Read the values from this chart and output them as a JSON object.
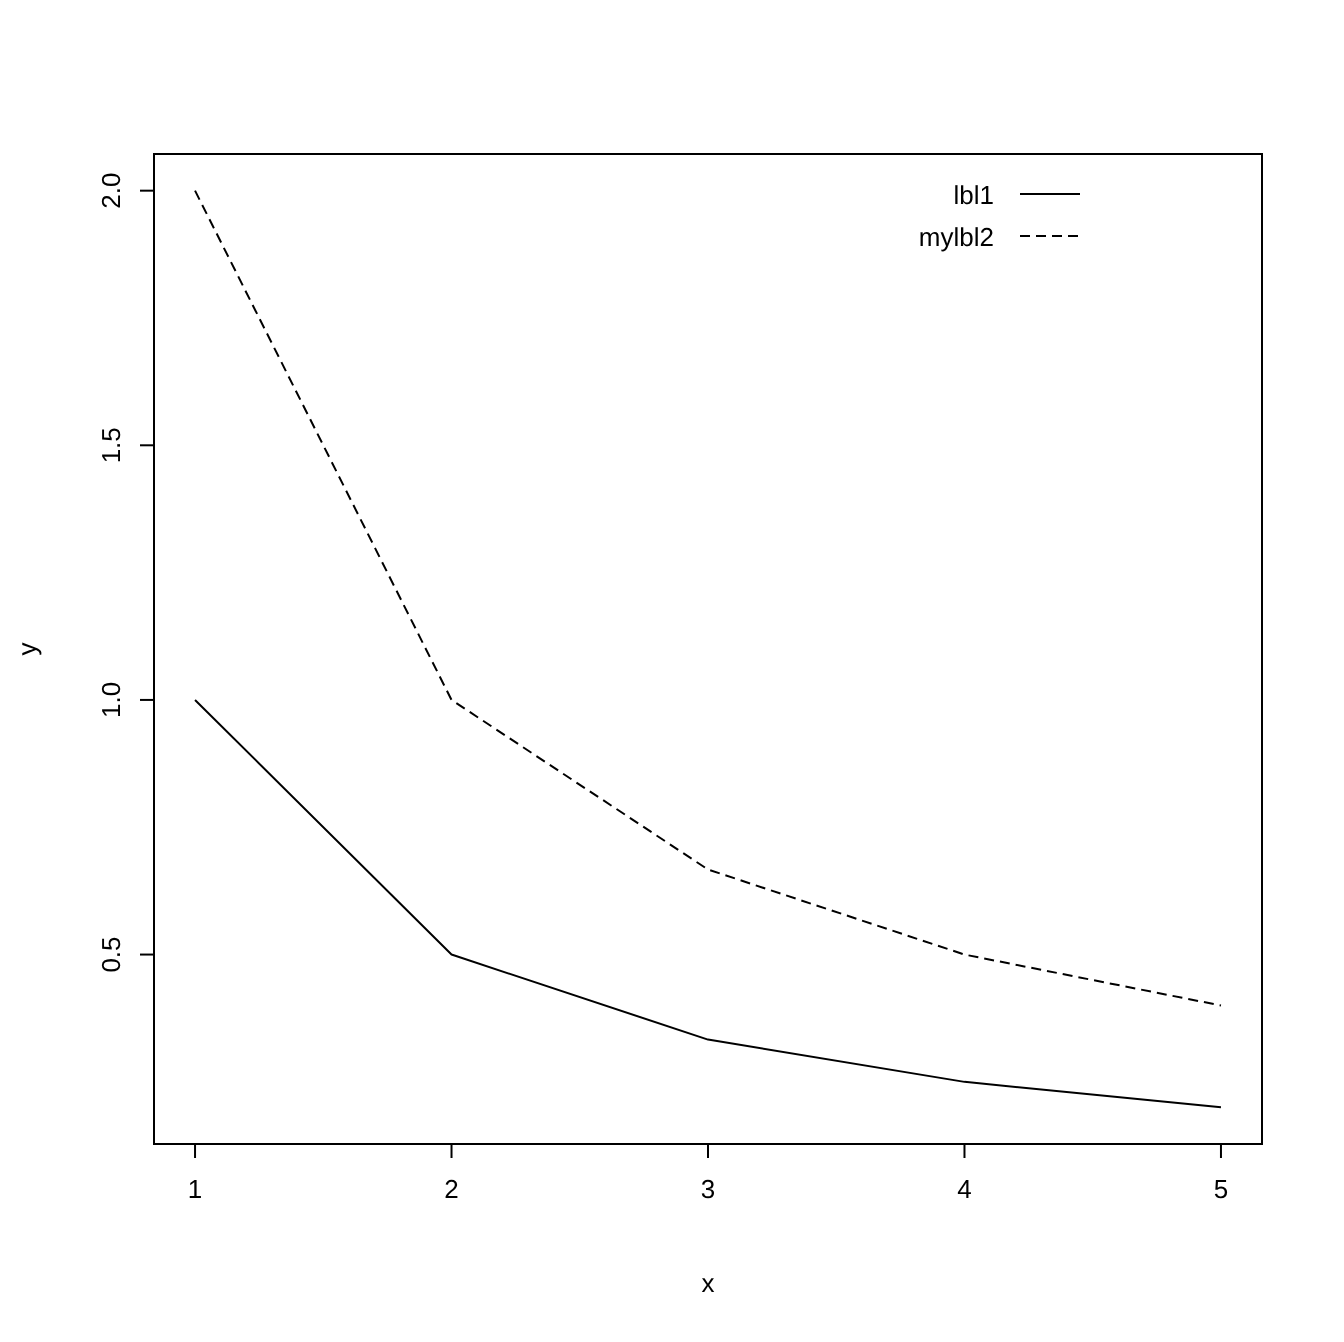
{
  "chart_data": {
    "type": "line",
    "xlabel": "x",
    "ylabel": "y",
    "x": [
      1,
      2,
      3,
      4,
      5
    ],
    "series": [
      {
        "name": "lbl1",
        "color": "#000000",
        "line_style": "solid",
        "values": [
          1,
          0.5,
          0.333,
          0.25,
          0.2
        ]
      },
      {
        "name": "mylbl2",
        "color": "#000000",
        "line_style": "dashed",
        "values": [
          2,
          1,
          0.667,
          0.5,
          0.4
        ]
      }
    ],
    "xlim": [
      0.84,
      5.16
    ],
    "ylim": [
      0.128,
      2.072
    ],
    "xticks": [
      1,
      2,
      3,
      4,
      5
    ],
    "yticks": [
      0.5,
      {
        "value": 1,
        "label": "1.0"
      },
      {
        "value": 1.5,
        "label": "1.5"
      },
      {
        "value": 2,
        "label": "2.0"
      }
    ],
    "legend": "top right"
  }
}
